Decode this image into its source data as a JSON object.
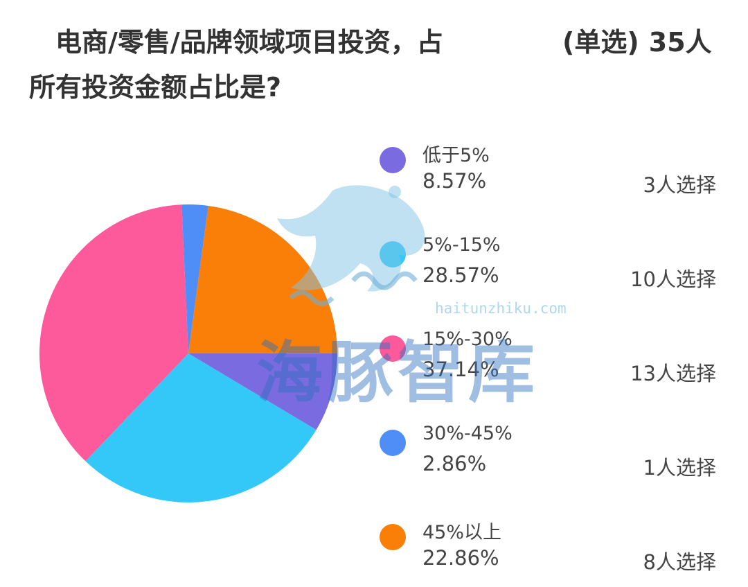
{
  "title": {
    "line1": "电商/零售/品牌领域项目投资，占",
    "type_label": "(单选)",
    "respondents": "35人",
    "line2": "所有投资金额占比是?"
  },
  "chart_data": {
    "type": "pie",
    "total_respondents": 35,
    "legend_position": "right",
    "slices": [
      {
        "label": "低于5%",
        "value": 8.57,
        "percent_text": "8.57%",
        "count_text": "3人选择",
        "color": "#7b6be0"
      },
      {
        "label": "5%-15%",
        "value": 28.57,
        "percent_text": "28.57%",
        "count_text": "10人选择",
        "color": "#33c8f7"
      },
      {
        "label": "15%-30%",
        "value": 37.14,
        "percent_text": "37.14%",
        "count_text": "13人选择",
        "color": "#fc5a9a"
      },
      {
        "label": "30%-45%",
        "value": 2.86,
        "percent_text": "2.86%",
        "count_text": "1人选择",
        "color": "#4f8ef7"
      },
      {
        "label": "45%以上",
        "value": 22.86,
        "percent_text": "22.86%",
        "count_text": "8人选择",
        "color": "#fa7f09"
      }
    ]
  },
  "watermark": {
    "text": "海豚智库",
    "url": "haitunzhiku.com"
  }
}
